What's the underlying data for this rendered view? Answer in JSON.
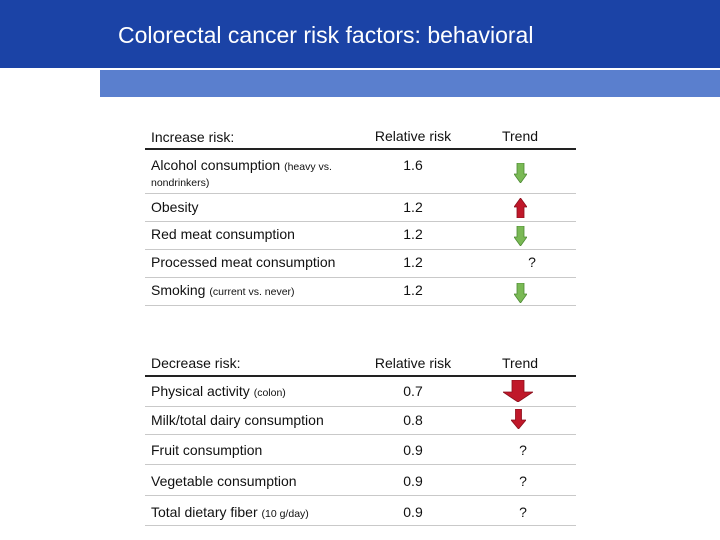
{
  "slide": {
    "title": "Colorectal cancer risk factors: behavioral"
  },
  "colors": {
    "header_blue": "#1b43a6",
    "band_blue": "#5a7fce",
    "arrow_down_green": "#7ab955",
    "arrow_up_red": "#c0182a",
    "arrow_down_red": "#c0182a"
  },
  "increase_table": {
    "headers": {
      "label": "Increase risk:",
      "relative_risk": "Relative risk",
      "trend": "Trend"
    },
    "rows": [
      {
        "label": "Alcohol consumption",
        "qualifier": "(heavy vs.",
        "qualifier2": "nondrinkers)",
        "relative_risk": "1.6",
        "trend": "arrow-down-green"
      },
      {
        "label": "Obesity",
        "qualifier": "",
        "relative_risk": "1.2",
        "trend": "arrow-up-red"
      },
      {
        "label": "Red meat consumption",
        "qualifier": "",
        "relative_risk": "1.2",
        "trend": "arrow-down-green"
      },
      {
        "label": "Processed meat consumption",
        "qualifier": "",
        "relative_risk": "1.2",
        "trend": "?"
      },
      {
        "label": "Smoking",
        "qualifier": "(current vs. never)",
        "relative_risk": "1.2",
        "trend": "arrow-down-green"
      }
    ]
  },
  "decrease_table": {
    "headers": {
      "label": "Decrease risk:",
      "relative_risk": "Relative risk",
      "trend": "Trend"
    },
    "rows": [
      {
        "label": "Physical activity",
        "qualifier": "(colon)",
        "relative_risk": "0.7",
        "trend": "arrow-down-red"
      },
      {
        "label": "Milk/total dairy consumption",
        "qualifier": "",
        "relative_risk": "0.8",
        "trend": "arrow-down-red"
      },
      {
        "label": "Fruit consumption",
        "qualifier": "",
        "relative_risk": "0.9",
        "trend": "?"
      },
      {
        "label": "Vegetable consumption",
        "qualifier": "",
        "relative_risk": "0.9",
        "trend": "?"
      },
      {
        "label": "Total dietary fiber",
        "qualifier": "(10 g/day)",
        "relative_risk": "0.9",
        "trend": "?"
      }
    ]
  }
}
